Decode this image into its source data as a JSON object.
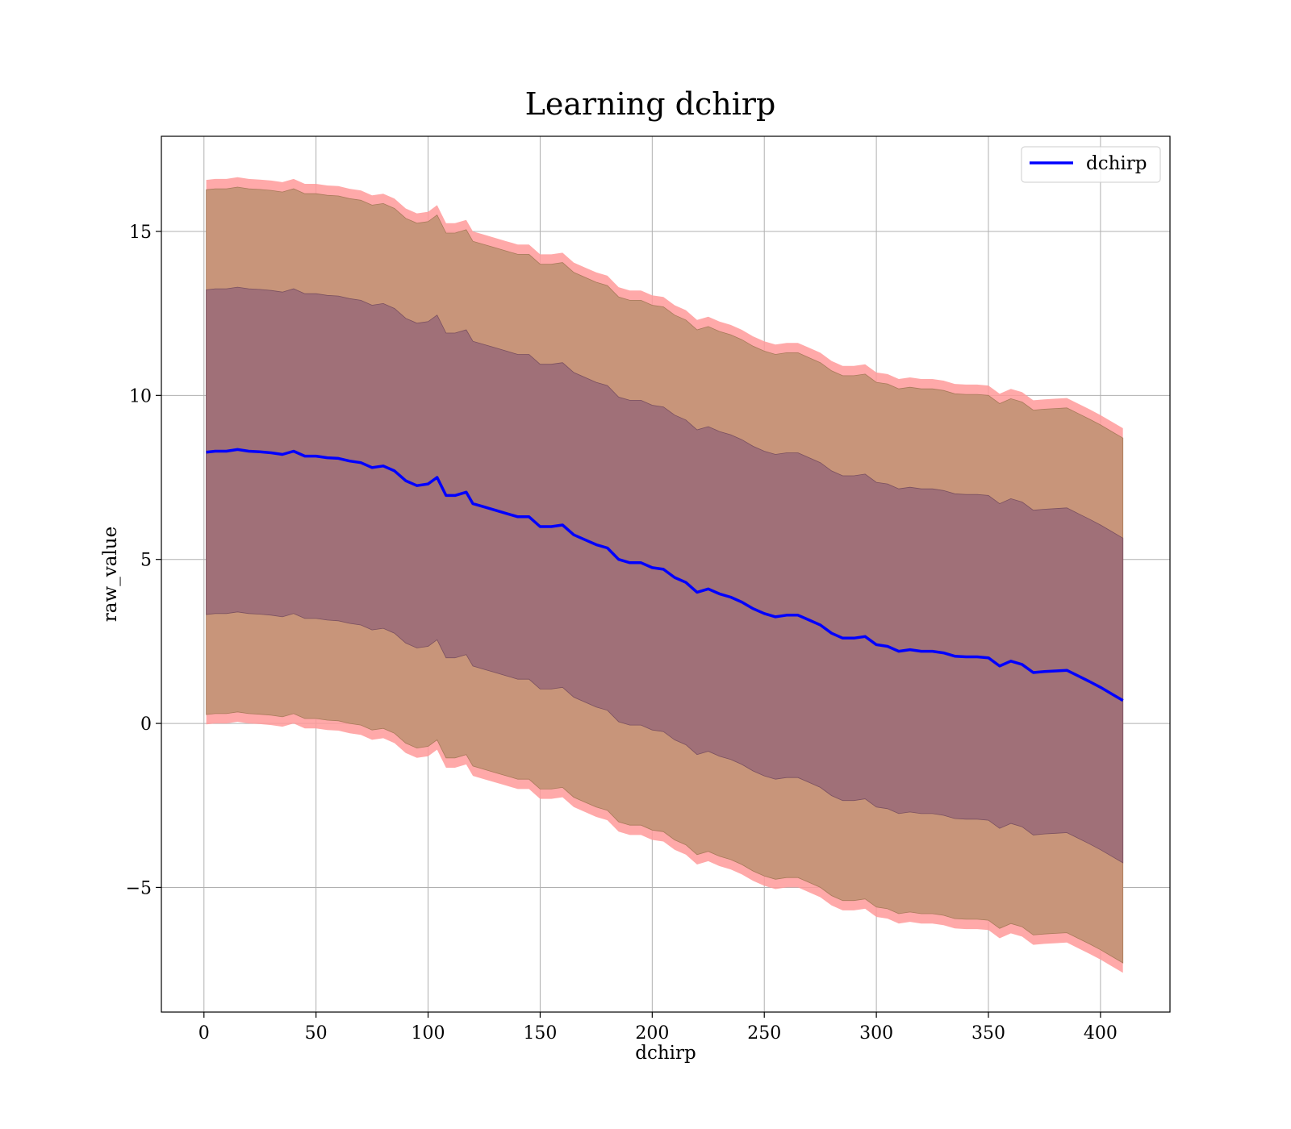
{
  "chart_data": {
    "type": "line",
    "title": "Learning dchirp",
    "xlabel": "dchirp",
    "ylabel": "raw_value",
    "xlim": [
      -19,
      431
    ],
    "ylim": [
      -8.8,
      17.9
    ],
    "xticks": [
      0,
      50,
      100,
      150,
      200,
      250,
      300,
      350,
      400
    ],
    "yticks": [
      -5,
      0,
      5,
      10,
      15
    ],
    "xtick_labels": [
      "0",
      "50",
      "100",
      "150",
      "200",
      "250",
      "300",
      "350",
      "400"
    ],
    "ytick_labels": [
      "−5",
      "0",
      "5",
      "10",
      "15"
    ],
    "grid": true,
    "legend": {
      "position": "top-right",
      "entries": [
        "dchirp"
      ]
    },
    "colors": {
      "line": "#0000ff",
      "band_outer": "#ff9a9a",
      "band_middle": "#c8957a",
      "band_inner": "#a07078"
    },
    "band_half_widths": {
      "inner": 4.95,
      "middle": 8.0,
      "outer": 8.3
    },
    "series": [
      {
        "name": "dchirp",
        "x": [
          1,
          5,
          10,
          15,
          20,
          25,
          30,
          35,
          40,
          45,
          50,
          55,
          60,
          65,
          70,
          75,
          80,
          85,
          90,
          95,
          100,
          104,
          108,
          112,
          117,
          120,
          125,
          130,
          135,
          140,
          145,
          150,
          155,
          160,
          165,
          170,
          175,
          180,
          185,
          190,
          195,
          200,
          205,
          210,
          215,
          220,
          225,
          230,
          235,
          240,
          245,
          250,
          255,
          260,
          265,
          270,
          275,
          280,
          285,
          290,
          295,
          300,
          305,
          310,
          315,
          320,
          325,
          330,
          335,
          340,
          345,
          350,
          355,
          360,
          365,
          370,
          375,
          380,
          385,
          390,
          395,
          400,
          405,
          410
        ],
        "y": [
          8.27,
          8.3,
          8.3,
          8.35,
          8.3,
          8.28,
          8.25,
          8.2,
          8.3,
          8.15,
          8.15,
          8.1,
          8.08,
          8.0,
          7.95,
          7.8,
          7.85,
          7.7,
          7.4,
          7.25,
          7.3,
          7.5,
          6.95,
          6.95,
          7.05,
          6.7,
          6.6,
          6.5,
          6.4,
          6.3,
          6.3,
          6.0,
          6.0,
          6.05,
          5.75,
          5.6,
          5.45,
          5.35,
          5.0,
          4.9,
          4.9,
          4.75,
          4.7,
          4.45,
          4.3,
          4.0,
          4.1,
          3.95,
          3.85,
          3.7,
          3.5,
          3.35,
          3.25,
          3.3,
          3.3,
          3.15,
          3.0,
          2.75,
          2.6,
          2.6,
          2.65,
          2.4,
          2.35,
          2.2,
          2.25,
          2.2,
          2.2,
          2.15,
          2.05,
          2.03,
          2.03,
          2.0,
          1.75,
          1.9,
          1.8,
          1.55,
          1.58,
          1.6,
          1.62,
          1.45,
          1.28,
          1.1,
          0.9,
          0.7
        ]
      }
    ]
  }
}
